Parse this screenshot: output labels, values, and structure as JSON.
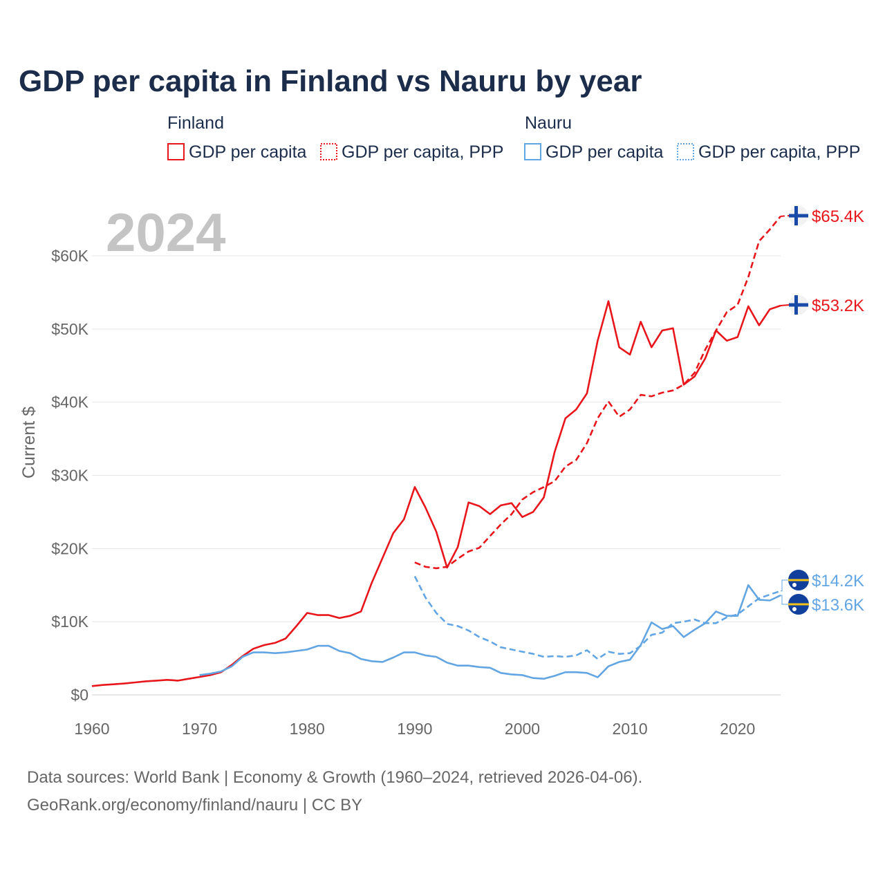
{
  "chart_data": {
    "type": "line",
    "title": "GDP per capita in Finland vs Nauru by year",
    "watermark_year": "2024",
    "ylabel": "Current $",
    "xlim": [
      1960,
      2024
    ],
    "ylim": [
      0,
      62000
    ],
    "x_ticks": [
      1960,
      1970,
      1980,
      1990,
      2000,
      2010,
      2020
    ],
    "x_tick_labels": [
      "1960",
      "1970",
      "1980",
      "1990",
      "2000",
      "2010",
      "2020"
    ],
    "y_ticks": [
      0,
      10000,
      20000,
      30000,
      40000,
      50000,
      60000
    ],
    "y_tick_labels": [
      "$0",
      "$10K",
      "$20K",
      "$30K",
      "$40K",
      "$50K",
      "$60K"
    ],
    "grid": true,
    "colors": {
      "finland": "#e8161b",
      "nauru": "#62a5e3",
      "title": "#1b2d4a",
      "axis_text": "#666666",
      "grid": "#e6e6e6"
    },
    "legend": {
      "groups": [
        {
          "name": "Finland",
          "items": [
            "GDP per capita",
            "GDP per capita, PPP"
          ]
        },
        {
          "name": "Nauru",
          "items": [
            "GDP per capita",
            "GDP per capita, PPP"
          ]
        }
      ]
    },
    "series": [
      {
        "name": "Finland GDP per capita",
        "country": "finland",
        "style": "solid",
        "x": [
          1960,
          1961,
          1962,
          1963,
          1964,
          1965,
          1966,
          1967,
          1968,
          1969,
          1970,
          1971,
          1972,
          1973,
          1974,
          1975,
          1976,
          1977,
          1978,
          1979,
          1980,
          1981,
          1982,
          1983,
          1984,
          1985,
          1986,
          1987,
          1988,
          1989,
          1990,
          1991,
          1992,
          1993,
          1994,
          1995,
          1996,
          1997,
          1998,
          1999,
          2000,
          2001,
          2002,
          2003,
          2004,
          2005,
          2006,
          2007,
          2008,
          2009,
          2010,
          2011,
          2012,
          2013,
          2014,
          2015,
          2016,
          2017,
          2018,
          2019,
          2020,
          2021,
          2022,
          2023,
          2024
        ],
        "values": [
          1200,
          1350,
          1450,
          1550,
          1700,
          1850,
          1950,
          2050,
          1950,
          2200,
          2450,
          2700,
          3100,
          4100,
          5300,
          6300,
          6800,
          7100,
          7700,
          9400,
          11200,
          10900,
          10900,
          10500,
          10800,
          11400,
          15300,
          18700,
          22100,
          24000,
          28400,
          25600,
          22300,
          17400,
          20200,
          26300,
          25800,
          24700,
          25900,
          26200,
          24300,
          25000,
          27000,
          33200,
          37800,
          39000,
          41200,
          48400,
          53800,
          47500,
          46500,
          51000,
          47500,
          49800,
          50100,
          42400,
          43500,
          46000,
          49800,
          48400,
          48900,
          53100,
          50500,
          52700,
          53200
        ],
        "end_label": "$53.2K"
      },
      {
        "name": "Finland GDP per capita, PPP",
        "country": "finland",
        "style": "dashed",
        "x": [
          1990,
          1991,
          1992,
          1993,
          1994,
          1995,
          1996,
          1997,
          1998,
          1999,
          2000,
          2001,
          2002,
          2003,
          2004,
          2005,
          2006,
          2007,
          2008,
          2009,
          2010,
          2011,
          2012,
          2013,
          2014,
          2015,
          2016,
          2017,
          2018,
          2019,
          2020,
          2021,
          2022,
          2023,
          2024
        ],
        "values": [
          18100,
          17500,
          17300,
          17500,
          18600,
          19600,
          20100,
          21700,
          23300,
          24700,
          26700,
          27700,
          28400,
          29200,
          31200,
          32100,
          34400,
          37800,
          40100,
          38000,
          39000,
          41000,
          40800,
          41300,
          41600,
          42400,
          44000,
          47200,
          49800,
          52300,
          53300,
          57100,
          62000,
          63600,
          65400
        ],
        "end_label": "$65.4K"
      },
      {
        "name": "Nauru GDP per capita",
        "country": "nauru",
        "style": "solid",
        "x": [
          1970,
          1971,
          1972,
          1973,
          1974,
          1975,
          1976,
          1977,
          1978,
          1979,
          1980,
          1981,
          1982,
          1983,
          1984,
          1985,
          1986,
          1987,
          1988,
          1989,
          1990,
          1991,
          1992,
          1993,
          1994,
          1995,
          1996,
          1997,
          1998,
          1999,
          2000,
          2001,
          2002,
          2003,
          2004,
          2005,
          2006,
          2007,
          2008,
          2009,
          2010,
          2011,
          2012,
          2013,
          2014,
          2015,
          2016,
          2017,
          2018,
          2019,
          2020,
          2021,
          2022,
          2023,
          2024
        ],
        "values": [
          2700,
          2900,
          3200,
          3900,
          5200,
          5800,
          5800,
          5700,
          5800,
          6000,
          6200,
          6700,
          6700,
          6000,
          5700,
          4900,
          4600,
          4500,
          5100,
          5800,
          5800,
          5400,
          5200,
          4400,
          4000,
          4000,
          3800,
          3700,
          3000,
          2800,
          2700,
          2300,
          2200,
          2600,
          3100,
          3100,
          3000,
          2400,
          3900,
          4500,
          4800,
          6800,
          9900,
          9000,
          9400,
          7900,
          8900,
          9800,
          11400,
          10800,
          10800,
          15000,
          13000,
          12900,
          13600
        ],
        "end_label": "$13.6K"
      },
      {
        "name": "Nauru GDP per capita, PPP",
        "country": "nauru",
        "style": "dashed",
        "x": [
          1990,
          1991,
          1992,
          1993,
          1994,
          1995,
          1996,
          1997,
          1998,
          1999,
          2000,
          2001,
          2002,
          2003,
          2004,
          2005,
          2006,
          2007,
          2008,
          2009,
          2010,
          2011,
          2012,
          2013,
          2014,
          2015,
          2016,
          2017,
          2018,
          2019,
          2020,
          2021,
          2022,
          2023,
          2024
        ],
        "values": [
          16200,
          13300,
          11200,
          9700,
          9400,
          8800,
          7900,
          7300,
          6500,
          6200,
          5900,
          5600,
          5200,
          5300,
          5200,
          5400,
          6100,
          4900,
          5900,
          5600,
          5700,
          6700,
          8200,
          8500,
          9800,
          10000,
          10300,
          9800,
          9800,
          10600,
          11000,
          12100,
          13200,
          13700,
          14200
        ],
        "end_label": "$14.2K"
      }
    ]
  },
  "source": {
    "line1": "Data sources: World Bank | Economy & Growth (1960–2024, retrieved 2026-04-06).",
    "line2": "GeoRank.org/economy/finland/nauru | CC BY"
  }
}
